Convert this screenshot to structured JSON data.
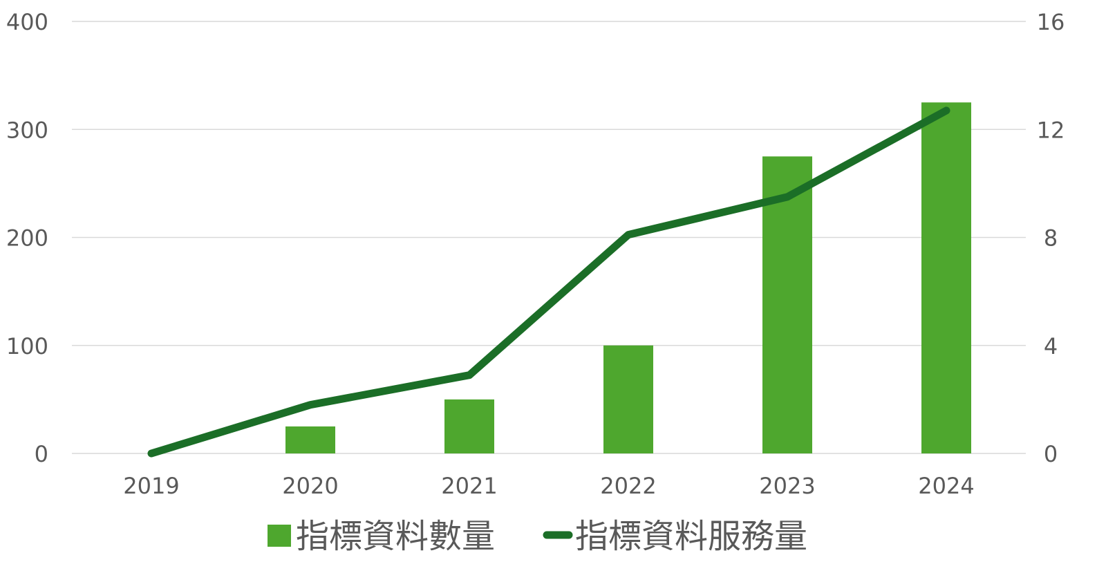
{
  "chart_data": {
    "type": "bar",
    "categories": [
      "2019",
      "2020",
      "2021",
      "2022",
      "2023",
      "2024"
    ],
    "series": [
      {
        "name": "指標資料數量",
        "type": "bar",
        "axis": "left",
        "values": [
          0,
          25,
          50,
          100,
          275,
          325
        ]
      },
      {
        "name": "指標資料服務量",
        "type": "line",
        "axis": "right",
        "values": [
          0,
          1.8,
          2.9,
          8.1,
          9.5,
          12.7
        ]
      }
    ],
    "left_axis": {
      "min": 0,
      "max": 400,
      "ticks": [
        "0",
        "100",
        "200",
        "300",
        "400"
      ]
    },
    "right_axis": {
      "min": 0,
      "max": 16,
      "ticks": [
        "0",
        "4",
        "8",
        "12",
        "16"
      ]
    },
    "grid": true,
    "legend_position": "bottom",
    "colors": {
      "bar": "#4ea72e",
      "line": "#1b6e27",
      "grid": "#d9d9d9",
      "tick_text": "#595959",
      "legend_text": "#595959"
    }
  }
}
